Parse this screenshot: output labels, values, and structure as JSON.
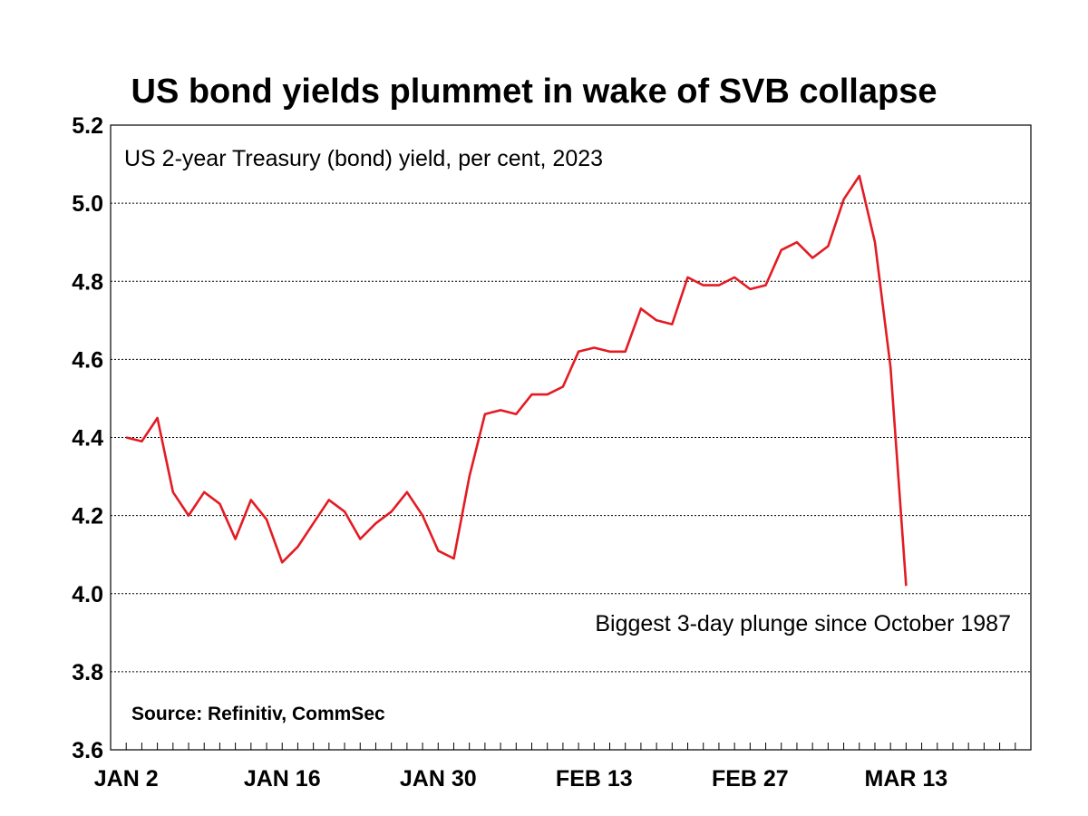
{
  "chart_data": {
    "type": "line",
    "title": "US bond yields plummet in wake of SVB collapse",
    "subtitle": "US 2-year Treasury (bond) yield, per cent, 2023",
    "annotation": "Biggest 3-day plunge since October 1987",
    "source": "Source: Refinitiv, CommSec",
    "ylim": [
      3.6,
      5.2
    ],
    "yticks": [
      "3.6",
      "3.8",
      "4.0",
      "4.2",
      "4.4",
      "4.6",
      "4.8",
      "5.0",
      "5.2"
    ],
    "x_tick_count": 59,
    "x_labels": [
      {
        "label": "JAN 2",
        "index": 1
      },
      {
        "label": "JAN 16",
        "index": 11
      },
      {
        "label": "JAN 30",
        "index": 21
      },
      {
        "label": "FEB 13",
        "index": 31
      },
      {
        "label": "FEB 27",
        "index": 41
      },
      {
        "label": "MAR 13",
        "index": 51
      }
    ],
    "series": [
      {
        "name": "US 2-year Treasury yield",
        "color": "#e31b23",
        "start_index": 1,
        "values": [
          4.4,
          4.39,
          4.45,
          4.26,
          4.2,
          4.26,
          4.23,
          4.14,
          4.24,
          4.19,
          4.08,
          4.12,
          4.18,
          4.24,
          4.21,
          4.14,
          4.18,
          4.21,
          4.26,
          4.2,
          4.11,
          4.09,
          4.3,
          4.46,
          4.47,
          4.46,
          4.51,
          4.51,
          4.53,
          4.62,
          4.63,
          4.62,
          4.62,
          4.73,
          4.7,
          4.69,
          4.81,
          4.79,
          4.79,
          4.81,
          4.78,
          4.79,
          4.88,
          4.9,
          4.86,
          4.89,
          5.01,
          5.07,
          4.9,
          4.58,
          4.02
        ]
      }
    ],
    "grid": "horizontal-dotted"
  }
}
